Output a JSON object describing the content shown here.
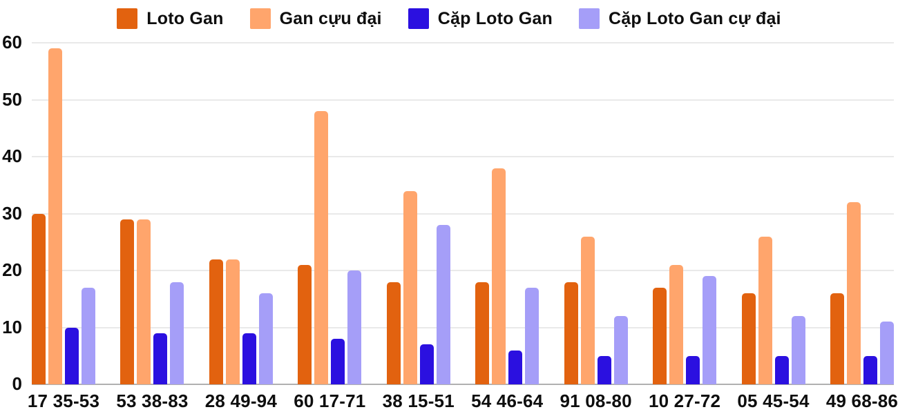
{
  "chart_data": {
    "type": "bar",
    "title": "",
    "xlabel": "",
    "ylabel": "",
    "ylim": [
      0,
      60
    ],
    "yticks": [
      0,
      10,
      20,
      30,
      40,
      50,
      60
    ],
    "grid": true,
    "legend_position": "top",
    "background_color": "#ffffff",
    "gridline_color": "#e9e9e9",
    "baseline_color": "#b0b0b0",
    "text_color": "#0e0e0e",
    "categories": [
      "17 35-53",
      "53 38-83",
      "28 49-94",
      "60 17-71",
      "38 15-51",
      "54 46-64",
      "91 08-80",
      "10 27-72",
      "05 45-54",
      "49 68-86"
    ],
    "series": [
      {
        "name": "Loto Gan",
        "color": "#e2620f",
        "values": [
          30,
          29,
          22,
          21,
          18,
          18,
          18,
          17,
          16,
          16
        ]
      },
      {
        "name": "Gan cựu đại",
        "color": "#ffa56c",
        "values": [
          59,
          29,
          22,
          48,
          34,
          38,
          26,
          21,
          26,
          32
        ]
      },
      {
        "name": "Cặp Loto Gan",
        "color": "#2b10e0",
        "values": [
          10,
          9,
          9,
          8,
          7,
          6,
          5,
          5,
          5,
          5
        ]
      },
      {
        "name": "Cặp Loto Gan cự đại",
        "color": "#a59ef8",
        "values": [
          17,
          18,
          16,
          20,
          28,
          17,
          12,
          19,
          12,
          11
        ]
      }
    ]
  }
}
